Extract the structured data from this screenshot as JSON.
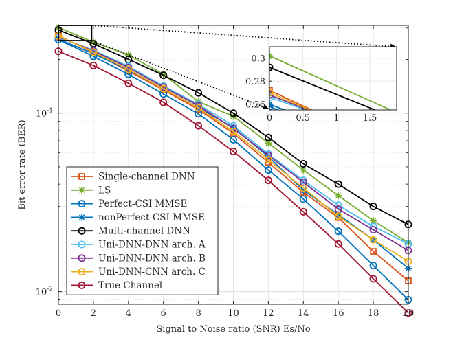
{
  "chart_data": {
    "type": "line",
    "title": "",
    "xlabel": "Signal to Noise ratio (SNR) Es/No",
    "ylabel": "Bit error rate (BER)",
    "xlim": [
      0,
      20
    ],
    "ylim": [
      0.0085,
      0.31
    ],
    "yscale": "log",
    "grid": true,
    "x_ticks": [
      0,
      2,
      4,
      6,
      8,
      10,
      12,
      14,
      16,
      18,
      20
    ],
    "y_ticks": [
      {
        "value": 0.1,
        "base": "10",
        "exp": "-1"
      },
      {
        "value": 0.01,
        "base": "10",
        "exp": "-2"
      }
    ],
    "x": [
      0,
      2,
      4,
      6,
      8,
      10,
      12,
      14,
      16,
      18,
      20
    ],
    "legend_position": "bottom-left",
    "series": [
      {
        "name": "Single-channel DNN",
        "color": "#D95319",
        "marker": "square",
        "values": [
          0.272,
          0.218,
          0.172,
          0.135,
          0.105,
          0.077,
          0.053,
          0.036,
          0.026,
          0.0168,
          0.0115
        ]
      },
      {
        "name": "LS",
        "color": "#77AC30",
        "marker": "star",
        "values": [
          0.302,
          0.25,
          0.212,
          0.165,
          0.116,
          0.096,
          0.068,
          0.048,
          0.0345,
          0.025,
          0.0188
        ]
      },
      {
        "name": "Perfect-CSI MMSE",
        "color": "#0072BD",
        "marker": "circle",
        "values": [
          0.258,
          0.208,
          0.165,
          0.128,
          0.099,
          0.071,
          0.048,
          0.033,
          0.0218,
          0.014,
          0.009
        ]
      },
      {
        "name": "nonPerfect-CSI MMSE",
        "color": "#0072BD",
        "marker": "star",
        "values": [
          0.26,
          0.215,
          0.175,
          0.137,
          0.107,
          0.083,
          0.057,
          0.037,
          0.027,
          0.0195,
          0.0135
        ]
      },
      {
        "name": "Multi-channel DNN",
        "color": "#000000",
        "marker": "circle",
        "values": [
          0.292,
          0.245,
          0.2,
          0.163,
          0.13,
          0.1,
          0.073,
          0.052,
          0.04,
          0.03,
          0.0238
        ]
      },
      {
        "name": "Uni-DNN-DNN arch. A",
        "color": "#4DBEEE",
        "marker": "circle",
        "values": [
          0.266,
          0.225,
          0.183,
          0.142,
          0.112,
          0.085,
          0.059,
          0.042,
          0.0305,
          0.0232,
          0.0185
        ]
      },
      {
        "name": "Uni-DNN-DNN arch. B",
        "color": "#7E2F8E",
        "marker": "circle",
        "values": [
          0.268,
          0.223,
          0.18,
          0.14,
          0.11,
          0.082,
          0.058,
          0.041,
          0.029,
          0.0222,
          0.017
        ]
      },
      {
        "name": "Uni-DNN-CNN arch. C",
        "color": "#EDB120",
        "marker": "circle",
        "values": [
          0.27,
          0.22,
          0.176,
          0.137,
          0.107,
          0.079,
          0.055,
          0.038,
          0.0265,
          0.0195,
          0.0148
        ]
      },
      {
        "name": "True Channel",
        "color": "#A2142F",
        "marker": "circle",
        "values": [
          0.222,
          0.185,
          0.147,
          0.115,
          0.085,
          0.061,
          0.042,
          0.028,
          0.0185,
          0.0118,
          0.0076
        ]
      }
    ],
    "inset": {
      "xlim": [
        0,
        1.9
      ],
      "ylim": [
        0.255,
        0.31
      ],
      "x_ticks": [
        0,
        0.5,
        1,
        1.5
      ],
      "x_tick_labels": [
        "0",
        "0.5",
        "1",
        "1.5"
      ],
      "y_ticks": [
        0.26,
        0.28,
        0.3
      ],
      "y_tick_labels": [
        "0.26",
        "0.28",
        "0.3"
      ]
    }
  }
}
